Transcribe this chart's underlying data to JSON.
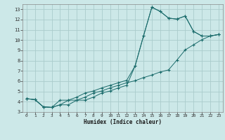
{
  "title": "",
  "xlabel": "Humidex (Indice chaleur)",
  "xlim": [
    -0.5,
    23.5
  ],
  "ylim": [
    3,
    13.5
  ],
  "xticks": [
    0,
    1,
    2,
    3,
    4,
    5,
    6,
    7,
    8,
    9,
    10,
    11,
    12,
    13,
    14,
    15,
    16,
    17,
    18,
    19,
    20,
    21,
    22,
    23
  ],
  "yticks": [
    3,
    4,
    5,
    6,
    7,
    8,
    9,
    10,
    11,
    12,
    13
  ],
  "background_color": "#cce8e8",
  "grid_color": "#aacccc",
  "line_color": "#1a6b6b",
  "line1_x": [
    0,
    1,
    2,
    3,
    4,
    5,
    6,
    7,
    8,
    9,
    10,
    11,
    12,
    13,
    14,
    15,
    16,
    17,
    18,
    19,
    20,
    21,
    22,
    23
  ],
  "line1_y": [
    4.3,
    4.2,
    3.5,
    3.45,
    3.7,
    4.15,
    4.15,
    4.45,
    4.85,
    5.05,
    5.35,
    5.6,
    5.85,
    6.05,
    6.35,
    6.6,
    6.9,
    7.1,
    8.05,
    9.05,
    9.55,
    10.05,
    10.4,
    10.55
  ],
  "line2_x": [
    0,
    1,
    2,
    3,
    4,
    5,
    6,
    7,
    8,
    9,
    10,
    11,
    12,
    13,
    14,
    15,
    16,
    17,
    18,
    19,
    20,
    21,
    22,
    23
  ],
  "line2_y": [
    4.3,
    4.2,
    3.5,
    3.45,
    4.15,
    4.15,
    4.45,
    4.85,
    5.05,
    5.35,
    5.6,
    5.85,
    6.1,
    7.5,
    10.4,
    13.2,
    12.8,
    12.15,
    12.05,
    12.35,
    10.85,
    10.4,
    10.4,
    10.55
  ],
  "line3_x": [
    0,
    1,
    2,
    3,
    4,
    5,
    6,
    7,
    8,
    9,
    10,
    11,
    12,
    13,
    14,
    15,
    16,
    17,
    18,
    19,
    20,
    21,
    22,
    23
  ],
  "line3_y": [
    4.3,
    4.2,
    3.5,
    3.45,
    3.7,
    3.7,
    4.15,
    4.15,
    4.45,
    4.85,
    5.05,
    5.35,
    5.6,
    7.5,
    10.4,
    13.2,
    12.8,
    12.15,
    12.05,
    12.35,
    10.85,
    10.4,
    10.4,
    10.55
  ]
}
